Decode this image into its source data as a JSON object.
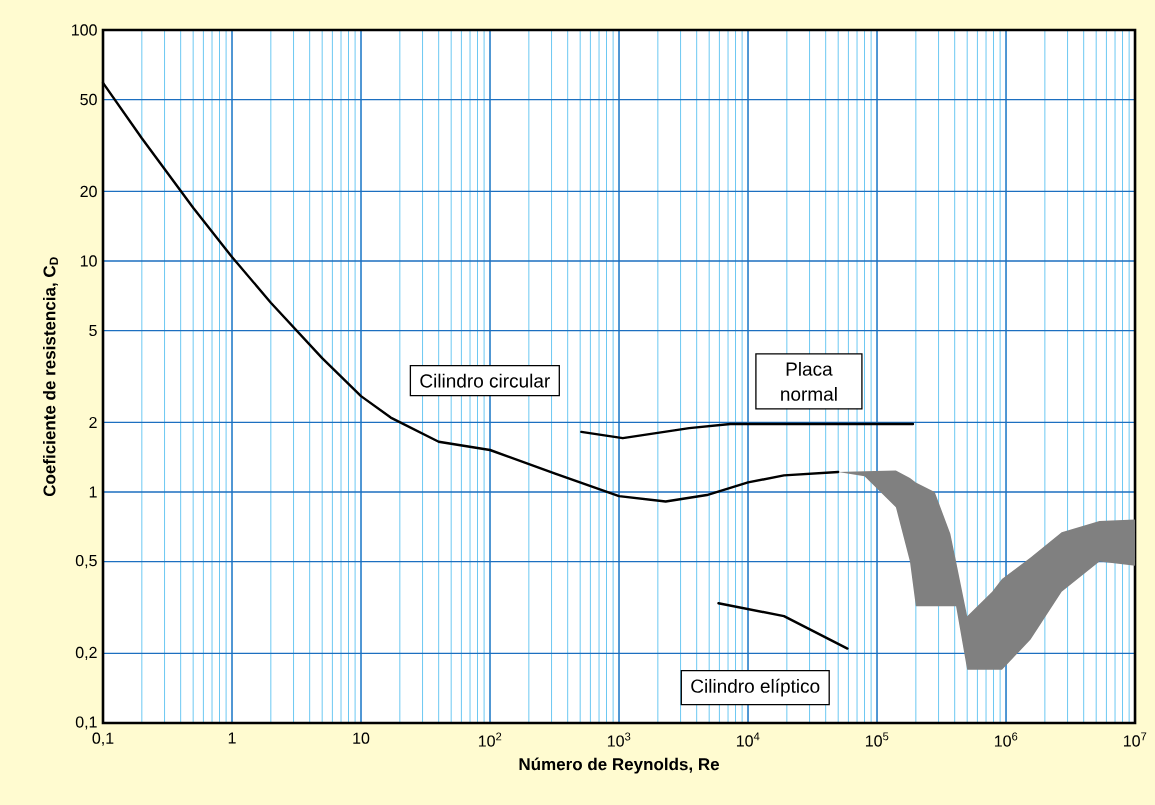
{
  "chart_data": {
    "type": "line",
    "xlabel": "Número de Reynolds, Re",
    "ylabel": "Coeficiente de resistencia, C$_{D}$",
    "log": "xy",
    "grid": true,
    "xlim": [
      0.1,
      10000000
    ],
    "ylim": [
      0.1,
      100
    ],
    "xticks": [
      {
        "value": 0.1,
        "label": "0,1"
      },
      1,
      10,
      {
        "value": 100,
        "label": "10$^{2}$"
      },
      {
        "value": 1000,
        "label": "10$^{3}$"
      },
      {
        "value": 10000,
        "label": "10$^{4}$"
      },
      {
        "value": 100000,
        "label": "10$^{5}$"
      },
      {
        "value": 1000000,
        "label": "10$^{6}$"
      },
      {
        "value": 10000000,
        "label": "10$^{7}$"
      }
    ],
    "yticks": [
      {
        "value": 0.1,
        "label": "0,1"
      },
      {
        "value": 0.2,
        "label": "0,2"
      },
      {
        "value": 0.5,
        "label": "0,5"
      },
      1,
      2,
      5,
      10,
      20,
      50,
      100
    ],
    "series": [
      {
        "color": "#000000",
        "x": [
          0.1,
          0.2,
          0.5,
          1,
          2,
          5,
          10,
          17,
          40,
          100,
          320,
          1000,
          2300,
          4800,
          10000,
          19000,
          50000
        ],
        "values": [
          59,
          34,
          17,
          10.4,
          6.6,
          3.8,
          2.6,
          2.1,
          1.65,
          1.52,
          1.2,
          0.96,
          0.91,
          0.97,
          1.1,
          1.18,
          1.22
        ]
      },
      {
        "color": "#000000",
        "x": [
          510,
          1070,
          3500,
          7300,
          190000
        ],
        "values": [
          1.82,
          1.71,
          1.89,
          1.97,
          1.97
        ]
      },
      {
        "color": "#000000",
        "x": [
          5900,
          19000,
          59000
        ],
        "values": [
          0.33,
          0.29,
          0.21
        ]
      },
      {
        "type": "area",
        "color": "#808080",
        "x": [
          50000,
          80000,
          140000,
          180000,
          200000,
          280000,
          370000,
          410000,
          500000,
          780000,
          930000,
          1550000,
          2700000,
          5300000,
          10000000
        ],
        "values": [
          null,
          null,
          null,
          null,
          null,
          null,
          null,
          null,
          null,
          null,
          null,
          null,
          null,
          null,
          null
        ],
        "upper": [
          1.22,
          1.23,
          1.24,
          1.15,
          1.1,
          1.0,
          0.66,
          0.5,
          0.29,
          0.37,
          0.42,
          0.52,
          0.67,
          0.75,
          0.76
        ],
        "lower": [
          1.22,
          1.17,
          0.86,
          0.5,
          0.32,
          0.32,
          0.32,
          0.32,
          0.17,
          0.17,
          0.17,
          0.23,
          0.37,
          0.5,
          0.48
        ]
      }
    ],
    "annotations": [
      "Cilindro circular",
      "Placa normal",
      "Cilindro elíptico"
    ]
  }
}
